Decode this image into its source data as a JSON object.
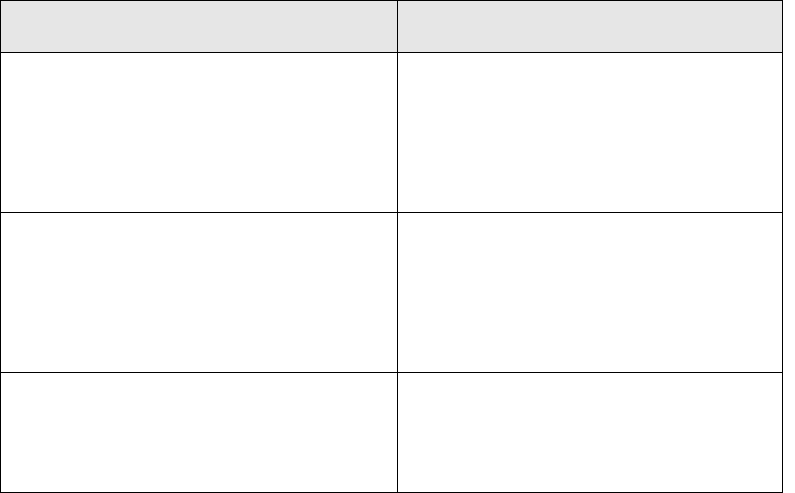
{
  "table": {
    "header": [
      "",
      ""
    ],
    "rows": [
      [
        "",
        ""
      ],
      [
        "",
        ""
      ],
      [
        "",
        ""
      ]
    ],
    "colors": {
      "header_background": "#e6e6e6",
      "border": "#000000"
    }
  }
}
